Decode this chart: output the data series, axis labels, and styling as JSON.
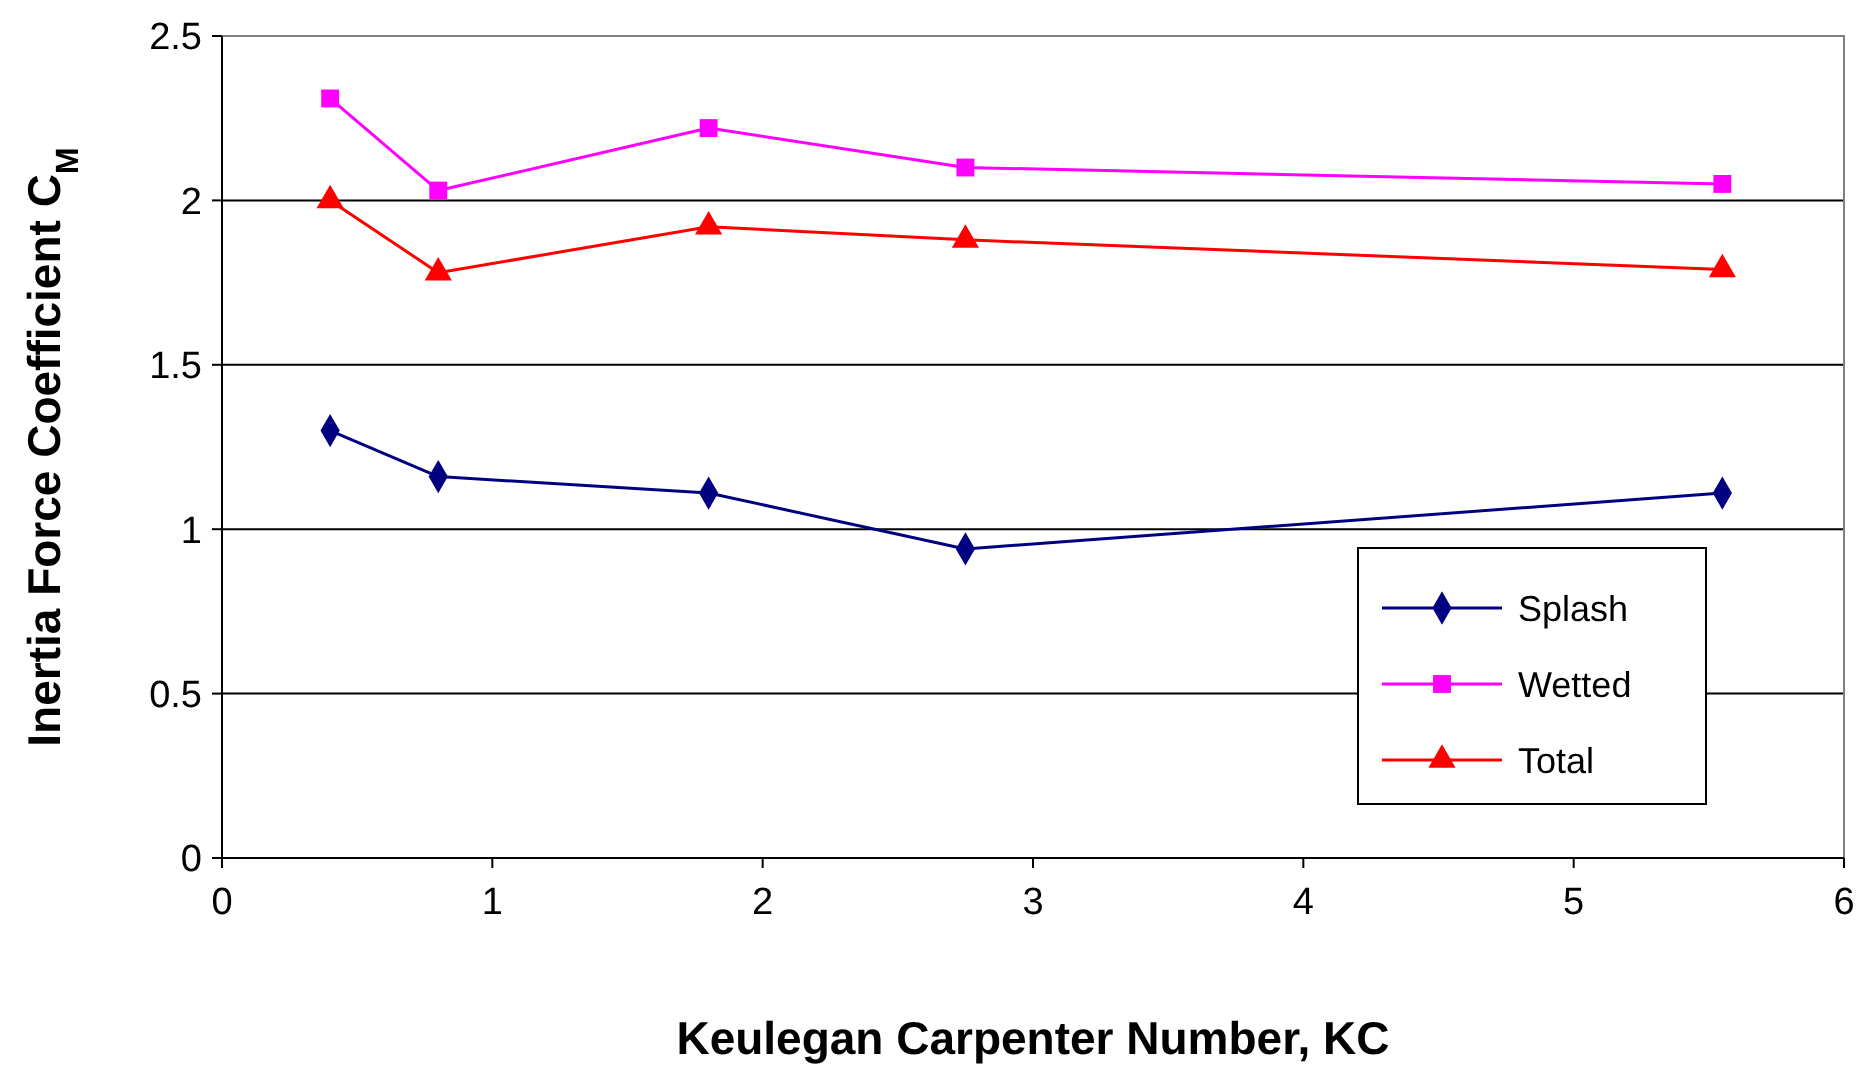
{
  "chart_data": {
    "type": "line",
    "xlabel": "Keulegan Carpenter Number, KC",
    "ylabel": "Inertia Force Coefficient C$_{M}$",
    "x": [
      0.4,
      0.8,
      1.8,
      2.75,
      5.55
    ],
    "series": [
      {
        "name": "Splash",
        "color": "#000080",
        "marker": "diamond",
        "values": [
          1.3,
          1.16,
          1.11,
          0.94,
          1.11
        ]
      },
      {
        "name": "Wetted",
        "color": "#ff00ff",
        "marker": "square",
        "values": [
          2.31,
          2.03,
          2.22,
          2.1,
          2.05
        ]
      },
      {
        "name": "Total",
        "color": "#ff0000",
        "marker": "triangle",
        "values": [
          2.0,
          1.78,
          1.92,
          1.88,
          1.79
        ]
      }
    ],
    "xlim": [
      0,
      6
    ],
    "xticks": [
      0,
      1,
      2,
      3,
      4,
      5,
      6
    ],
    "ylim": [
      0,
      2.5
    ],
    "yticks": [
      0,
      0.5,
      1,
      1.5,
      2,
      2.5
    ],
    "grid": "y",
    "legend": "bottom right"
  }
}
